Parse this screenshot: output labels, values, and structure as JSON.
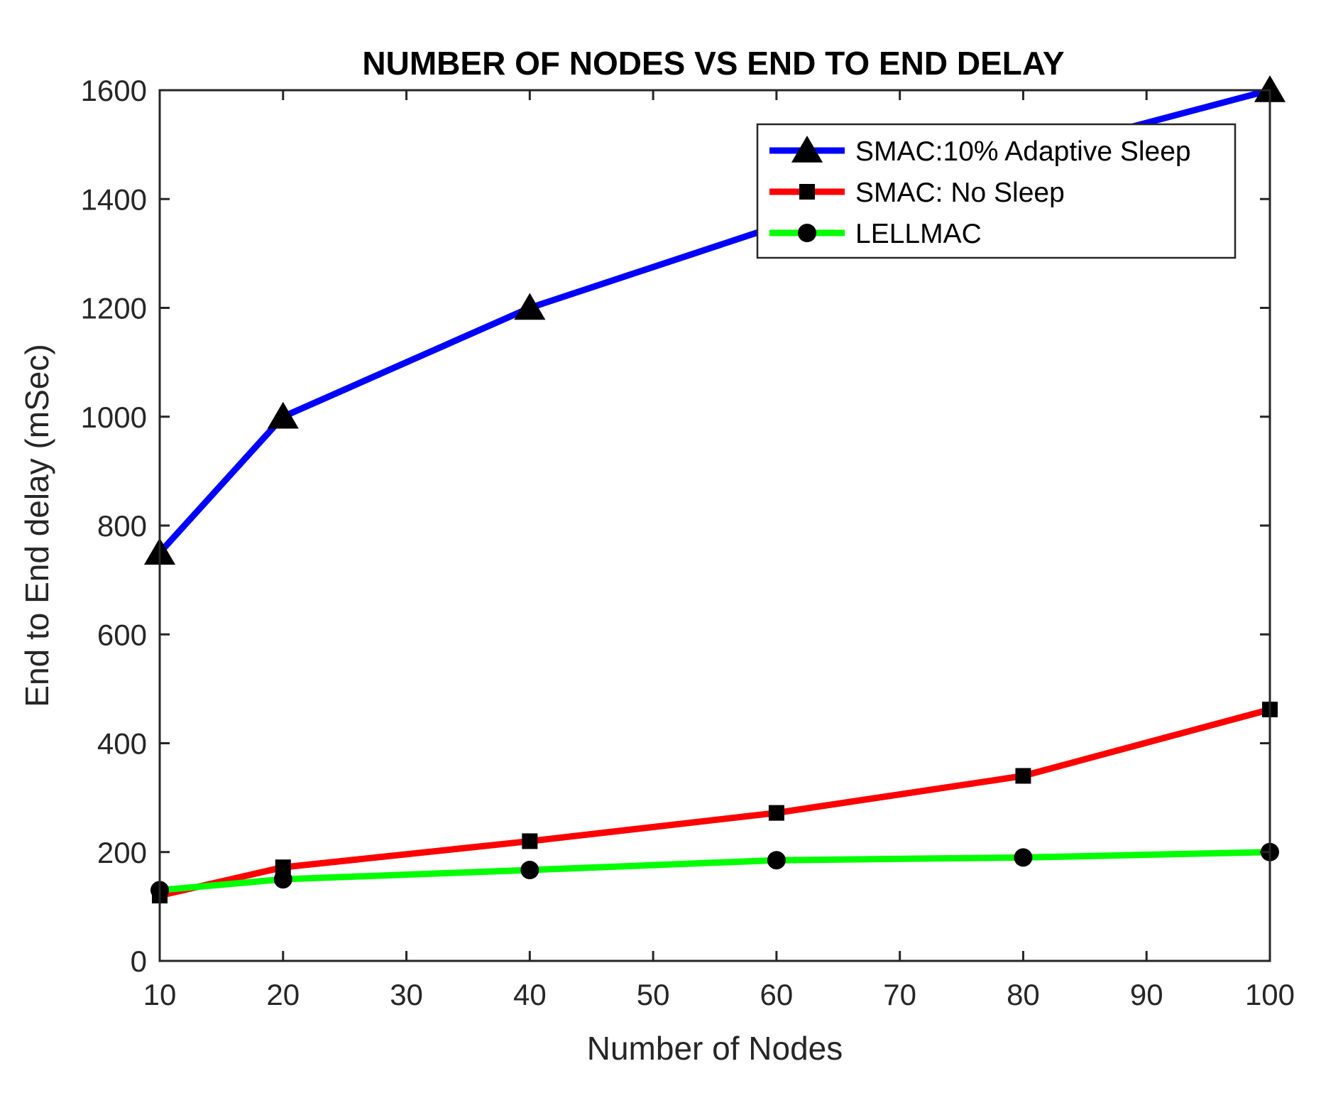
{
  "chart_data": {
    "type": "line",
    "title": "NUMBER OF NODES VS END TO END DELAY",
    "xlabel": "Number of Nodes",
    "ylabel": "End to End delay (mSec)",
    "xlim": [
      10,
      100
    ],
    "ylim": [
      0,
      1600
    ],
    "xticks": [
      10,
      20,
      30,
      40,
      50,
      60,
      70,
      80,
      90,
      100
    ],
    "yticks": [
      0,
      200,
      400,
      600,
      800,
      1000,
      1200,
      1400,
      1600
    ],
    "grid": false,
    "legend_position": "top-right",
    "x": [
      10,
      20,
      40,
      60,
      80,
      100
    ],
    "series": [
      {
        "name": "SMAC:10% Adaptive Sleep",
        "color": "#0000ff",
        "marker": "triangle",
        "values": [
          750,
          1000,
          1200,
          1350,
          1480,
          1600
        ]
      },
      {
        "name": "SMAC: No Sleep",
        "color": "#ff0000",
        "marker": "square",
        "values": [
          120,
          172,
          220,
          272,
          340,
          462
        ]
      },
      {
        "name": "LELLMAC",
        "color": "#00ff00",
        "marker": "circle",
        "values": [
          130,
          150,
          167,
          185,
          190,
          200
        ]
      }
    ]
  }
}
